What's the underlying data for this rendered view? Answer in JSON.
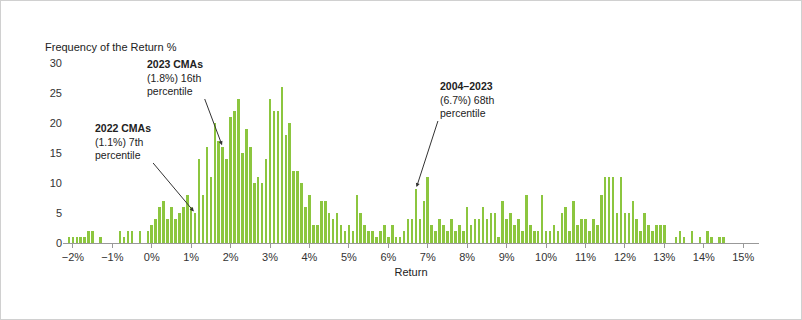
{
  "chart_data": {
    "type": "bar",
    "ylabel": "Frequency of the Return %",
    "xlabel": "Return",
    "color": "#8cc63f",
    "grid": false,
    "x": [
      -2.1,
      -2,
      -1.9,
      -1.8,
      -1.7,
      -1.6,
      -1.5,
      -1.4,
      -1.3,
      -1.2,
      -1.1,
      -1,
      -0.9,
      -0.8,
      -0.7,
      -0.6,
      -0.5,
      -0.4,
      -0.3,
      -0.2,
      -0.1,
      0,
      0.1,
      0.2,
      0.3,
      0.4,
      0.5,
      0.6,
      0.7,
      0.8,
      0.9,
      1,
      1.1,
      1.2,
      1.3,
      1.4,
      1.5,
      1.6,
      1.7,
      1.8,
      1.9,
      2,
      2.1,
      2.2,
      2.3,
      2.4,
      2.5,
      2.6,
      2.7,
      2.8,
      2.9,
      3,
      3.1,
      3.2,
      3.3,
      3.4,
      3.5,
      3.6,
      3.7,
      3.8,
      3.9,
      4,
      4.1,
      4.2,
      4.3,
      4.4,
      4.5,
      4.6,
      4.7,
      4.8,
      4.9,
      5,
      5.1,
      5.2,
      5.3,
      5.4,
      5.5,
      5.6,
      5.7,
      5.8,
      5.9,
      6,
      6.1,
      6.2,
      6.3,
      6.4,
      6.5,
      6.6,
      6.7,
      6.8,
      6.9,
      7,
      7.1,
      7.2,
      7.3,
      7.4,
      7.5,
      7.6,
      7.7,
      7.8,
      7.9,
      8,
      8.1,
      8.2,
      8.3,
      8.4,
      8.5,
      8.6,
      8.7,
      8.8,
      8.9,
      9,
      9.1,
      9.2,
      9.3,
      9.4,
      9.5,
      9.6,
      9.7,
      9.8,
      9.9,
      10,
      10.1,
      10.2,
      10.3,
      10.4,
      10.5,
      10.6,
      10.7,
      10.8,
      10.9,
      11,
      11.1,
      11.2,
      11.3,
      11.4,
      11.5,
      11.6,
      11.7,
      11.8,
      11.9,
      12,
      12.1,
      12.2,
      12.3,
      12.4,
      12.5,
      12.6,
      12.7,
      12.8,
      12.9,
      13,
      13.1,
      13.2,
      13.3,
      13.4,
      13.5,
      13.6,
      13.7,
      13.8,
      13.9,
      14,
      14.1,
      14.2,
      14.3,
      14.4,
      14.5
    ],
    "values": [
      1,
      1,
      1,
      1,
      1,
      2,
      2,
      0,
      1,
      0,
      0,
      0,
      0,
      2,
      1,
      2,
      2,
      0,
      2,
      0,
      2,
      3,
      4,
      6,
      7,
      4,
      6,
      4,
      5,
      6,
      8,
      6,
      5,
      14,
      8,
      16,
      11,
      20,
      17,
      16,
      14,
      21,
      22,
      24,
      15,
      19,
      16,
      10,
      11,
      10,
      14,
      24,
      22,
      22,
      26,
      18,
      20,
      12,
      12,
      10,
      6,
      8,
      3,
      3,
      7,
      7,
      5,
      4,
      5,
      3,
      2,
      3,
      2,
      8,
      5,
      3,
      2,
      2,
      1,
      2,
      3,
      1,
      3,
      1,
      1,
      2,
      4,
      4,
      9,
      4,
      7,
      11,
      3,
      2,
      4,
      3,
      2,
      4,
      2,
      3,
      2,
      6,
      3,
      4,
      4,
      6,
      4,
      5,
      5,
      1,
      7,
      4,
      5,
      3,
      4,
      2,
      8,
      3,
      2,
      2,
      8,
      2,
      2,
      3,
      2,
      5,
      6,
      2,
      7,
      3,
      4,
      4,
      2,
      4,
      3,
      8,
      11,
      11,
      11,
      5,
      11,
      5,
      5,
      7,
      4,
      2,
      5,
      3,
      2,
      3,
      3,
      3,
      0,
      0,
      1,
      2,
      1,
      0,
      2,
      0,
      1,
      0,
      2,
      1,
      0,
      1,
      1
    ],
    "xlim": [
      -2.25,
      15.4
    ],
    "xticks": [
      {
        "value": -2,
        "label": "−2%"
      },
      {
        "value": -1,
        "label": "−1%"
      },
      {
        "value": 0,
        "label": "0%"
      },
      {
        "value": 1,
        "label": "1%"
      },
      {
        "value": 2,
        "label": "2%"
      },
      {
        "value": 3,
        "label": "3%"
      },
      {
        "value": 4,
        "label": "4%"
      },
      {
        "value": 5,
        "label": "5%"
      },
      {
        "value": 6,
        "label": "6%"
      },
      {
        "value": 7,
        "label": "7%"
      },
      {
        "value": 8,
        "label": "8%"
      },
      {
        "value": 9,
        "label": "9%"
      },
      {
        "value": 10,
        "label": "10%"
      },
      {
        "value": 11,
        "label": "11%"
      },
      {
        "value": 12,
        "label": "12%"
      },
      {
        "value": 13,
        "label": "13%"
      },
      {
        "value": 14,
        "label": "14%"
      },
      {
        "value": 15,
        "label": "15%"
      }
    ],
    "ylim": [
      0,
      30
    ],
    "yticks": [
      0,
      5,
      10,
      15,
      20,
      25,
      30
    ],
    "annotations": [
      {
        "x": 1.1,
        "title": "2022 CMAs",
        "lines": [
          "(1.1%) 7th",
          "percentile"
        ]
      },
      {
        "x": 1.8,
        "title": "2023 CMAs",
        "lines": [
          "(1.8%) 16th",
          "percentile"
        ]
      },
      {
        "x": 6.7,
        "title": "2004–2023",
        "lines": [
          "(6.7%) 68th",
          "percentile"
        ]
      }
    ]
  }
}
